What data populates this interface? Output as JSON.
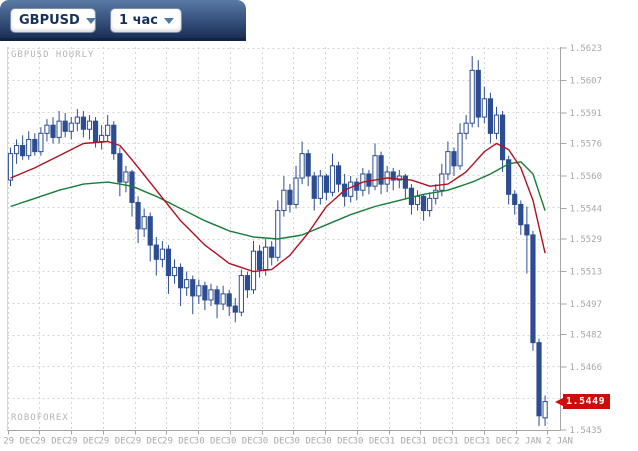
{
  "header": {
    "symbol_dropdown": {
      "value": "GBPUSD"
    },
    "timeframe_dropdown": {
      "value": "1 час"
    }
  },
  "chart": {
    "watermark_title": "GBPUSD HOURLY",
    "watermark_brand": "ROBOFOREX",
    "current_price_label": "1.5449"
  },
  "chart_data": {
    "type": "candlestick",
    "title": "GBPUSD HOURLY",
    "symbol": "GBPUSD",
    "timeframe_label": "1 час",
    "y_min": 1.5435,
    "y_max": 1.5623,
    "y_gridline_count": 13,
    "y_tick_labels": [
      "1.5623",
      "1.5607",
      "1.5591",
      "1.5576",
      "1.5560",
      "1.5544",
      "1.5529",
      "1.5513",
      "1.5497",
      "1.5482",
      "1.5466",
      "1.5435"
    ],
    "x_tick_labels": [
      "29 DEC",
      "29 DEC",
      "29 DEC",
      "29 DEC",
      "29 DEC",
      "29 DEC",
      "30 DEC",
      "30 DEC",
      "30 DEC",
      "30 DEC",
      "30 DEC",
      "30 DEC",
      "31 DEC",
      "31 DEC",
      "31 DEC",
      "31 DEC",
      "2 JAN",
      "2 JAN"
    ],
    "current_price": 1.5449,
    "candles_ohlc": [
      [
        1.5558,
        1.5574,
        1.5555,
        1.5571
      ],
      [
        1.5571,
        1.5578,
        1.5566,
        1.5575
      ],
      [
        1.5575,
        1.558,
        1.5568,
        1.557
      ],
      [
        1.557,
        1.5582,
        1.5568,
        1.5578
      ],
      [
        1.5578,
        1.5581,
        1.557,
        1.5572
      ],
      [
        1.5572,
        1.5584,
        1.557,
        1.5581
      ],
      [
        1.5581,
        1.5588,
        1.5577,
        1.5585
      ],
      [
        1.5585,
        1.5589,
        1.5576,
        1.5579
      ],
      [
        1.5579,
        1.5592,
        1.5576,
        1.5587
      ],
      [
        1.5587,
        1.5591,
        1.5579,
        1.5582
      ],
      [
        1.5582,
        1.5589,
        1.5578,
        1.5586
      ],
      [
        1.5586,
        1.5593,
        1.5582,
        1.5589
      ],
      [
        1.5589,
        1.5592,
        1.5579,
        1.5583
      ],
      [
        1.5583,
        1.559,
        1.5578,
        1.5587
      ],
      [
        1.5587,
        1.5589,
        1.5574,
        1.5577
      ],
      [
        1.5577,
        1.5585,
        1.5573,
        1.558
      ],
      [
        1.558,
        1.559,
        1.5577,
        1.5585
      ],
      [
        1.5585,
        1.5587,
        1.5568,
        1.5571
      ],
      [
        1.5571,
        1.5574,
        1.555,
        1.5557
      ],
      [
        1.5557,
        1.5565,
        1.5552,
        1.5562
      ],
      [
        1.5562,
        1.5563,
        1.554,
        1.5547
      ],
      [
        1.5547,
        1.555,
        1.5527,
        1.5534
      ],
      [
        1.5534,
        1.5544,
        1.553,
        1.554
      ],
      [
        1.554,
        1.5542,
        1.5518,
        1.5526
      ],
      [
        1.5526,
        1.553,
        1.5511,
        1.5519
      ],
      [
        1.5519,
        1.5528,
        1.5515,
        1.5524
      ],
      [
        1.5524,
        1.5526,
        1.5502,
        1.5511
      ],
      [
        1.5511,
        1.5519,
        1.5507,
        1.5515
      ],
      [
        1.5515,
        1.5517,
        1.5496,
        1.5505
      ],
      [
        1.5505,
        1.5513,
        1.5501,
        1.5509
      ],
      [
        1.5509,
        1.5511,
        1.5492,
        1.5501
      ],
      [
        1.5501,
        1.5509,
        1.5497,
        1.5506
      ],
      [
        1.5506,
        1.5508,
        1.5494,
        1.5499
      ],
      [
        1.5499,
        1.5507,
        1.5496,
        1.5504
      ],
      [
        1.5504,
        1.5506,
        1.549,
        1.5497
      ],
      [
        1.5497,
        1.5506,
        1.5494,
        1.5502
      ],
      [
        1.5502,
        1.5504,
        1.5491,
        1.5496
      ],
      [
        1.5496,
        1.55,
        1.5488,
        1.5493
      ],
      [
        1.5493,
        1.5514,
        1.5491,
        1.5511
      ],
      [
        1.5511,
        1.5513,
        1.55,
        1.5504
      ],
      [
        1.5504,
        1.5528,
        1.5502,
        1.5523
      ],
      [
        1.5523,
        1.5526,
        1.551,
        1.5514
      ],
      [
        1.5514,
        1.5529,
        1.5511,
        1.5525
      ],
      [
        1.5525,
        1.5528,
        1.5516,
        1.552
      ],
      [
        1.552,
        1.5548,
        1.5518,
        1.5543
      ],
      [
        1.5543,
        1.556,
        1.554,
        1.5553
      ],
      [
        1.5553,
        1.5556,
        1.5542,
        1.5546
      ],
      [
        1.5546,
        1.5565,
        1.5544,
        1.5559
      ],
      [
        1.5559,
        1.5577,
        1.5556,
        1.5571
      ],
      [
        1.5571,
        1.5573,
        1.5555,
        1.556
      ],
      [
        1.556,
        1.5562,
        1.5543,
        1.5549
      ],
      [
        1.5549,
        1.5563,
        1.5546,
        1.556
      ],
      [
        1.556,
        1.5561,
        1.5548,
        1.5552
      ],
      [
        1.5552,
        1.5571,
        1.555,
        1.5565
      ],
      [
        1.5565,
        1.5567,
        1.5552,
        1.5556
      ],
      [
        1.5556,
        1.5561,
        1.5545,
        1.555
      ],
      [
        1.555,
        1.556,
        1.5547,
        1.5557
      ],
      [
        1.5557,
        1.5559,
        1.5548,
        1.5553
      ],
      [
        1.5553,
        1.5564,
        1.555,
        1.5561
      ],
      [
        1.5561,
        1.5563,
        1.5551,
        1.5555
      ],
      [
        1.5555,
        1.5576,
        1.5553,
        1.557
      ],
      [
        1.557,
        1.5572,
        1.5551,
        1.5556
      ],
      [
        1.5556,
        1.5565,
        1.5552,
        1.5562
      ],
      [
        1.5562,
        1.5564,
        1.5553,
        1.5558
      ],
      [
        1.5558,
        1.5563,
        1.5554,
        1.556
      ],
      [
        1.556,
        1.5561,
        1.5549,
        1.5554
      ],
      [
        1.5554,
        1.5556,
        1.5541,
        1.5546
      ],
      [
        1.5546,
        1.5553,
        1.5543,
        1.555
      ],
      [
        1.555,
        1.5551,
        1.5538,
        1.5543
      ],
      [
        1.5543,
        1.5552,
        1.554,
        1.5549
      ],
      [
        1.5549,
        1.5556,
        1.5546,
        1.5553
      ],
      [
        1.5553,
        1.5566,
        1.555,
        1.5561
      ],
      [
        1.5561,
        1.5577,
        1.5558,
        1.5572
      ],
      [
        1.5572,
        1.5574,
        1.556,
        1.5565
      ],
      [
        1.5565,
        1.5586,
        1.5563,
        1.5581
      ],
      [
        1.5581,
        1.559,
        1.5578,
        1.5586
      ],
      [
        1.5586,
        1.5619,
        1.5584,
        1.5612
      ],
      [
        1.5612,
        1.5617,
        1.5584,
        1.5589
      ],
      [
        1.5589,
        1.5604,
        1.5586,
        1.5598
      ],
      [
        1.5598,
        1.5601,
        1.5576,
        1.5581
      ],
      [
        1.5581,
        1.5594,
        1.5578,
        1.559
      ],
      [
        1.559,
        1.5592,
        1.5562,
        1.5568
      ],
      [
        1.5568,
        1.557,
        1.5546,
        1.5551
      ],
      [
        1.5551,
        1.5553,
        1.5541,
        1.5546
      ],
      [
        1.5546,
        1.5548,
        1.5531,
        1.5536
      ],
      [
        1.5536,
        1.5545,
        1.5512,
        1.5531
      ],
      [
        1.5531,
        1.5533,
        1.5474,
        1.5478
      ],
      [
        1.5478,
        1.548,
        1.5437,
        1.5442
      ],
      [
        1.5441,
        1.5452,
        1.5437,
        1.5449
      ]
    ],
    "ma_fast": {
      "name": "fast moving average",
      "color": "#b01224",
      "points": [
        [
          0,
          1.5559
        ],
        [
          4,
          1.5564
        ],
        [
          8,
          1.557
        ],
        [
          12,
          1.5576
        ],
        [
          16,
          1.5577
        ],
        [
          18,
          1.5575
        ],
        [
          20,
          1.5568
        ],
        [
          24,
          1.5553
        ],
        [
          28,
          1.5538
        ],
        [
          32,
          1.5526
        ],
        [
          36,
          1.5517
        ],
        [
          40,
          1.5513
        ],
        [
          43,
          1.5514
        ],
        [
          46,
          1.5521
        ],
        [
          49,
          1.5532
        ],
        [
          52,
          1.5545
        ],
        [
          55,
          1.5553
        ],
        [
          58,
          1.5557
        ],
        [
          62,
          1.5559
        ],
        [
          66,
          1.5558
        ],
        [
          69,
          1.5555
        ],
        [
          72,
          1.5556
        ],
        [
          75,
          1.5562
        ],
        [
          78,
          1.5572
        ],
        [
          80,
          1.5576
        ],
        [
          82,
          1.5573
        ],
        [
          84,
          1.5564
        ],
        [
          86,
          1.5548
        ],
        [
          88,
          1.5522
        ]
      ]
    },
    "ma_slow": {
      "name": "slow moving average",
      "color": "#177d36",
      "points": [
        [
          0,
          1.5545
        ],
        [
          4,
          1.5549
        ],
        [
          8,
          1.5553
        ],
        [
          12,
          1.5556
        ],
        [
          16,
          1.5557
        ],
        [
          20,
          1.5555
        ],
        [
          24,
          1.555
        ],
        [
          28,
          1.5544
        ],
        [
          32,
          1.5538
        ],
        [
          36,
          1.5533
        ],
        [
          40,
          1.553
        ],
        [
          44,
          1.5529
        ],
        [
          48,
          1.5531
        ],
        [
          52,
          1.5536
        ],
        [
          56,
          1.5541
        ],
        [
          60,
          1.5545
        ],
        [
          64,
          1.5548
        ],
        [
          68,
          1.5551
        ],
        [
          72,
          1.5553
        ],
        [
          76,
          1.5557
        ],
        [
          79,
          1.5561
        ],
        [
          82,
          1.5566
        ],
        [
          84,
          1.5567
        ],
        [
          86,
          1.5561
        ],
        [
          88,
          1.5543
        ]
      ]
    },
    "colors": {
      "candle": "#2d4d92",
      "candle_hollow_fill": "#ffffff",
      "grid": "#d6d6d6",
      "axis": "#a6a6a6",
      "tick_text": "#a9a9a9",
      "watermark": "#b4b4b4",
      "price_label_bg": "#cf0a0a",
      "price_label_text": "#ffffff"
    },
    "layout_hints": {
      "grid": "dashed",
      "y_axis_side": "right",
      "x_axis_side": "bottom"
    }
  }
}
